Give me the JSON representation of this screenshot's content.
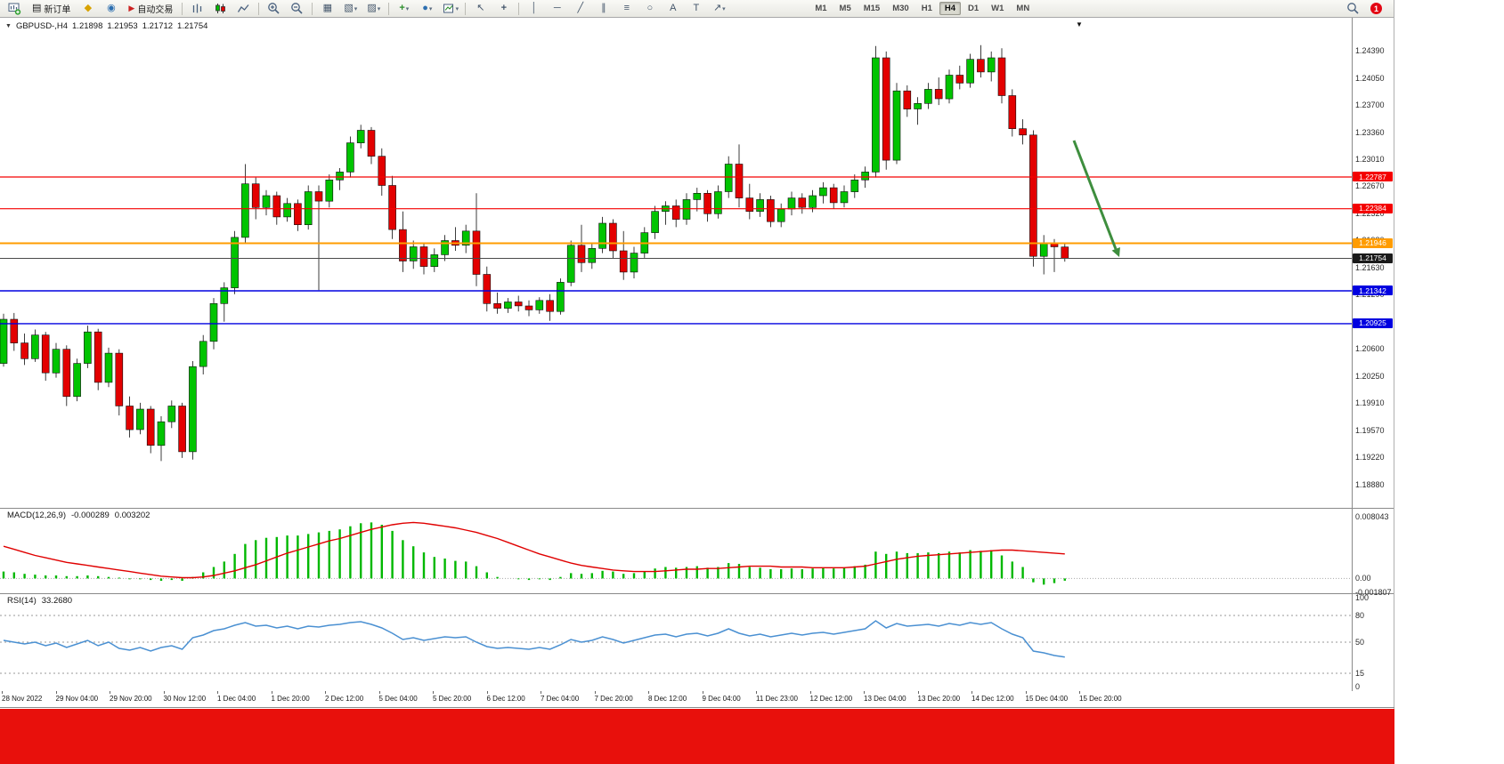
{
  "toolbar": {
    "new_order_label": "新订单",
    "autotrading_label": "自动交易",
    "timeframes": [
      "M1",
      "M5",
      "M15",
      "M30",
      "H1",
      "H4",
      "D1",
      "W1",
      "MN"
    ],
    "active_timeframe": "H4",
    "notification_badge": "1"
  },
  "icons": {
    "new_order_doc": "▤",
    "profile_gold": "◆",
    "market_watch": "◉",
    "autotrading_play": "▶",
    "tile_windows": "▦",
    "cascade_windows": "▧",
    "objects_list": "▨",
    "indicators_add": "+",
    "periods_clock": "●",
    "cursor": "↖",
    "crosshair": "+",
    "vertical_line": "│",
    "horizontal_line": "─",
    "trendline": "╱",
    "channel": "∥",
    "fibonacci": "≡",
    "shapes": "○",
    "text_tool": "A",
    "label_tool": "T",
    "arrows_tool": "↗",
    "chart_shift_marker": "▼",
    "one_click_toggle": "▼"
  },
  "chart_header": {
    "symbol": "GBPUSD-,H4",
    "open": "1.21898",
    "high": "1.21953",
    "low": "1.21712",
    "close": "1.21754"
  },
  "macd_label": {
    "name": "MACD(12,26,9)",
    "value": "-0.000289",
    "signal": "0.003202"
  },
  "rsi_label": {
    "name": "RSI(14)",
    "value": "33.2680"
  },
  "axis": {
    "price_ticks": [
      "1.24390",
      "1.24050",
      "1.23700",
      "1.23360",
      "1.23010",
      "1.22670",
      "1.22320",
      "1.21980",
      "1.21630",
      "1.21290",
      "1.20940",
      "1.20600",
      "1.20250",
      "1.19910",
      "1.19570",
      "1.19220",
      "1.18880"
    ],
    "macd_ticks": [
      "0.008043",
      "0.00",
      "-0.001807"
    ],
    "rsi_ticks": [
      "100",
      "80",
      "50",
      "15",
      "0"
    ]
  },
  "levels": [
    {
      "label": "1.22787",
      "price": 1.22787,
      "color": "#f40000",
      "tag_bg": "#f40000",
      "width": 1.2
    },
    {
      "label": "1.22384",
      "price": 1.22384,
      "color": "#f40000",
      "tag_bg": "#f40000",
      "width": 1.2
    },
    {
      "label": "1.21946",
      "price": 1.21946,
      "color": "#ff9c00",
      "tag_bg": "#ff9c00",
      "width": 2
    },
    {
      "label": "1.21754",
      "price": 1.21754,
      "color": "#4a4a4a",
      "tag_bg": "#1b1b1b",
      "width": 1
    },
    {
      "label": "1.21342",
      "price": 1.21342,
      "color": "#0000e0",
      "tag_bg": "#0000e0",
      "width": 1.4
    },
    {
      "label": "1.20925",
      "price": 1.20925,
      "color": "#0000e0",
      "tag_bg": "#0000e0",
      "width": 1.4
    }
  ],
  "time_axis": [
    "28 Nov 2022",
    "29 Nov 04:00",
    "29 Nov 20:00",
    "30 Nov 12:00",
    "1 Dec 04:00",
    "1 Dec 20:00",
    "2 Dec 12:00",
    "5 Dec 04:00",
    "5 Dec 20:00",
    "6 Dec 12:00",
    "7 Dec 04:00",
    "7 Dec 20:00",
    "8 Dec 12:00",
    "9 Dec 04:00",
    "11 Dec 23:00",
    "12 Dec 12:00",
    "13 Dec 04:00",
    "13 Dec 20:00",
    "14 Dec 12:00",
    "15 Dec 04:00",
    "15 Dec 20:00"
  ],
  "chart_data": {
    "type": "candlestick",
    "symbol": "GBPUSD",
    "timeframe": "H4",
    "axis_top": 1.2439,
    "ylim": [
      1.1888,
      1.24446
    ],
    "colors": {
      "up": "#00c400",
      "down": "#e30000",
      "outline": "#0d0d0d",
      "macd_hist": "#00b800",
      "macd_signal": "#e00000",
      "rsi_line": "#4a90d2"
    },
    "macd_scale": {
      "max": 0.008043,
      "min": -0.001807
    },
    "rsi_levels": [
      80,
      50,
      15
    ],
    "arrow": {
      "direction": "down-right",
      "color": "#3e8e3e"
    },
    "candles": [
      [
        1.2042,
        1.2105,
        1.2038,
        1.2098
      ],
      [
        1.2098,
        1.2106,
        1.2058,
        1.2068
      ],
      [
        1.2068,
        1.208,
        1.204,
        1.2048
      ],
      [
        1.2048,
        1.2085,
        1.2044,
        1.2078
      ],
      [
        1.2078,
        1.2082,
        1.202,
        1.203
      ],
      [
        1.203,
        1.2068,
        1.2024,
        1.206
      ],
      [
        1.206,
        1.2065,
        1.1988,
        1.2
      ],
      [
        1.2,
        1.2048,
        1.1994,
        1.2042
      ],
      [
        1.2042,
        1.209,
        1.2036,
        1.2082
      ],
      [
        1.2082,
        1.2086,
        1.2008,
        1.2018
      ],
      [
        1.2018,
        1.2062,
        1.2012,
        1.2055
      ],
      [
        1.2055,
        1.206,
        1.1976,
        1.1988
      ],
      [
        1.1988,
        1.2,
        1.1948,
        1.1958
      ],
      [
        1.1958,
        1.1992,
        1.1952,
        1.1984
      ],
      [
        1.1984,
        1.1988,
        1.1928,
        1.1938
      ],
      [
        1.1938,
        1.1975,
        1.1918,
        1.1968
      ],
      [
        1.1968,
        1.1995,
        1.196,
        1.1988
      ],
      [
        1.1988,
        1.1992,
        1.1922,
        1.193
      ],
      [
        1.193,
        1.2045,
        1.192,
        1.2038
      ],
      [
        1.2038,
        1.2078,
        1.2028,
        1.207
      ],
      [
        1.207,
        1.2125,
        1.206,
        1.2118
      ],
      [
        1.2118,
        1.2145,
        1.2095,
        1.2138
      ],
      [
        1.2138,
        1.221,
        1.213,
        1.2202
      ],
      [
        1.2202,
        1.2295,
        1.2195,
        1.227
      ],
      [
        1.227,
        1.2278,
        1.2225,
        1.224
      ],
      [
        1.224,
        1.2262,
        1.223,
        1.2255
      ],
      [
        1.2255,
        1.226,
        1.2218,
        1.2228
      ],
      [
        1.2228,
        1.2252,
        1.2222,
        1.2245
      ],
      [
        1.2245,
        1.225,
        1.221,
        1.2218
      ],
      [
        1.2218,
        1.2268,
        1.2212,
        1.226
      ],
      [
        1.226,
        1.2268,
        1.2135,
        1.2248
      ],
      [
        1.2248,
        1.2282,
        1.224,
        1.2275
      ],
      [
        1.2275,
        1.229,
        1.2262,
        1.2285
      ],
      [
        1.2285,
        1.233,
        1.2278,
        1.2322
      ],
      [
        1.2322,
        1.2345,
        1.2315,
        1.2338
      ],
      [
        1.2338,
        1.2342,
        1.2295,
        1.2305
      ],
      [
        1.2305,
        1.2315,
        1.2255,
        1.2268
      ],
      [
        1.2268,
        1.228,
        1.22,
        1.2212
      ],
      [
        1.2212,
        1.2235,
        1.2158,
        1.2172
      ],
      [
        1.2172,
        1.2198,
        1.2162,
        1.219
      ],
      [
        1.219,
        1.2195,
        1.2155,
        1.2165
      ],
      [
        1.2165,
        1.2188,
        1.2158,
        1.218
      ],
      [
        1.218,
        1.2205,
        1.2172,
        1.2198
      ],
      [
        1.2198,
        1.2215,
        1.2185,
        1.2192
      ],
      [
        1.2192,
        1.2218,
        1.2182,
        1.221
      ],
      [
        1.221,
        1.2258,
        1.214,
        1.2155
      ],
      [
        1.2155,
        1.2165,
        1.2108,
        1.2118
      ],
      [
        1.2118,
        1.2132,
        1.2105,
        1.2112
      ],
      [
        1.2112,
        1.2125,
        1.2106,
        1.212
      ],
      [
        1.212,
        1.2128,
        1.2108,
        1.2115
      ],
      [
        1.2115,
        1.2122,
        1.2102,
        1.211
      ],
      [
        1.211,
        1.2126,
        1.2105,
        1.2122
      ],
      [
        1.2122,
        1.213,
        1.2096,
        1.2108
      ],
      [
        1.2108,
        1.215,
        1.2104,
        1.2145
      ],
      [
        1.2145,
        1.2198,
        1.214,
        1.2192
      ],
      [
        1.2192,
        1.2218,
        1.2158,
        1.217
      ],
      [
        1.217,
        1.2195,
        1.2162,
        1.2188
      ],
      [
        1.2188,
        1.2228,
        1.2182,
        1.222
      ],
      [
        1.222,
        1.2225,
        1.2175,
        1.2185
      ],
      [
        1.2185,
        1.221,
        1.2148,
        1.2158
      ],
      [
        1.2158,
        1.219,
        1.215,
        1.2182
      ],
      [
        1.2182,
        1.2215,
        1.2176,
        1.2208
      ],
      [
        1.2208,
        1.2242,
        1.22,
        1.2235
      ],
      [
        1.2235,
        1.2248,
        1.2218,
        1.2242
      ],
      [
        1.2242,
        1.225,
        1.2215,
        1.2225
      ],
      [
        1.2225,
        1.2258,
        1.2218,
        1.225
      ],
      [
        1.225,
        1.2265,
        1.2235,
        1.2258
      ],
      [
        1.2258,
        1.2262,
        1.2222,
        1.2232
      ],
      [
        1.2232,
        1.2268,
        1.2226,
        1.226
      ],
      [
        1.226,
        1.2305,
        1.2252,
        1.2295
      ],
      [
        1.2295,
        1.232,
        1.224,
        1.2252
      ],
      [
        1.2252,
        1.227,
        1.2225,
        1.2235
      ],
      [
        1.2235,
        1.2258,
        1.2228,
        1.225
      ],
      [
        1.225,
        1.2255,
        1.2215,
        1.2222
      ],
      [
        1.2222,
        1.2245,
        1.2215,
        1.2238
      ],
      [
        1.2238,
        1.226,
        1.223,
        1.2252
      ],
      [
        1.2252,
        1.2258,
        1.2232,
        1.224
      ],
      [
        1.224,
        1.2262,
        1.2234,
        1.2255
      ],
      [
        1.2255,
        1.2272,
        1.2245,
        1.2265
      ],
      [
        1.2265,
        1.227,
        1.2238,
        1.2246
      ],
      [
        1.2246,
        1.2268,
        1.224,
        1.226
      ],
      [
        1.226,
        1.2282,
        1.2252,
        1.2275
      ],
      [
        1.2275,
        1.2292,
        1.2265,
        1.2285
      ],
      [
        1.2285,
        1.2445,
        1.2278,
        1.243
      ],
      [
        1.243,
        1.2438,
        1.2288,
        1.23
      ],
      [
        1.23,
        1.2398,
        1.2295,
        1.2388
      ],
      [
        1.2388,
        1.2395,
        1.2355,
        1.2365
      ],
      [
        1.2365,
        1.238,
        1.2345,
        1.2372
      ],
      [
        1.2372,
        1.2398,
        1.2365,
        1.239
      ],
      [
        1.239,
        1.2405,
        1.237,
        1.2378
      ],
      [
        1.2378,
        1.2415,
        1.2372,
        1.2408
      ],
      [
        1.2408,
        1.242,
        1.239,
        1.2398
      ],
      [
        1.2398,
        1.2435,
        1.2392,
        1.2428
      ],
      [
        1.2428,
        1.2446,
        1.2405,
        1.2412
      ],
      [
        1.2412,
        1.2438,
        1.24,
        1.243
      ],
      [
        1.243,
        1.2442,
        1.2372,
        1.2382
      ],
      [
        1.2382,
        1.239,
        1.233,
        1.234
      ],
      [
        1.234,
        1.2352,
        1.232,
        1.2332
      ],
      [
        1.2332,
        1.2338,
        1.2165,
        1.2178
      ],
      [
        1.2178,
        1.2205,
        1.2155,
        1.2195
      ],
      [
        1.2195,
        1.22,
        1.2158,
        1.219
      ],
      [
        1.21898,
        1.21953,
        1.21712,
        1.21754
      ]
    ],
    "macd_hist": [
      0.0009,
      0.0008,
      0.0006,
      0.0005,
      0.0004,
      0.0004,
      0.0003,
      0.0003,
      0.0004,
      0.0003,
      0.0002,
      0.0001,
      -0.0001,
      -0.0001,
      -0.0002,
      -0.0003,
      -0.0002,
      -0.0003,
      0.0002,
      0.0008,
      0.0015,
      0.0022,
      0.0032,
      0.0045,
      0.005,
      0.0053,
      0.0054,
      0.0056,
      0.0056,
      0.0058,
      0.006,
      0.0062,
      0.0064,
      0.0068,
      0.0072,
      0.0073,
      0.007,
      0.0062,
      0.005,
      0.0042,
      0.0034,
      0.0028,
      0.0026,
      0.0023,
      0.0022,
      0.0016,
      0.0008,
      0.0002,
      0,
      -0.0001,
      -0.0002,
      -0.0001,
      -0.0002,
      0.0002,
      0.0007,
      0.0006,
      0.0007,
      0.001,
      0.0009,
      0.0006,
      0.0007,
      0.0009,
      0.0013,
      0.0015,
      0.0014,
      0.0015,
      0.0016,
      0.0014,
      0.0015,
      0.002,
      0.0019,
      0.0015,
      0.0014,
      0.0012,
      0.0012,
      0.0013,
      0.0012,
      0.0013,
      0.0014,
      0.0013,
      0.0014,
      0.0016,
      0.0018,
      0.0035,
      0.0032,
      0.0035,
      0.0033,
      0.0033,
      0.0034,
      0.0033,
      0.0035,
      0.0034,
      0.0037,
      0.0036,
      0.0037,
      0.003,
      0.0022,
      0.0015,
      -0.0005,
      -0.0008,
      -0.0006,
      -0.000289
    ],
    "macd_signal": [
      0.0042,
      0.0038,
      0.0034,
      0.003,
      0.0027,
      0.0024,
      0.0021,
      0.0019,
      0.0017,
      0.0015,
      0.0013,
      0.0011,
      0.0009,
      0.0007,
      0.0005,
      0.0003,
      0.0002,
      0.0001,
      0.0001,
      0.0002,
      0.0004,
      0.0007,
      0.001,
      0.0014,
      0.0018,
      0.0023,
      0.0028,
      0.0033,
      0.0037,
      0.0041,
      0.0045,
      0.0049,
      0.0052,
      0.0056,
      0.006,
      0.0064,
      0.0067,
      0.007,
      0.0072,
      0.0073,
      0.0072,
      0.007,
      0.0068,
      0.0066,
      0.0063,
      0.006,
      0.0056,
      0.0052,
      0.0047,
      0.0042,
      0.0037,
      0.0032,
      0.0028,
      0.0024,
      0.002,
      0.0017,
      0.0015,
      0.0013,
      0.0011,
      0.001,
      0.0009,
      0.0009,
      0.0009,
      0.001,
      0.0011,
      0.0012,
      0.0012,
      0.0013,
      0.0013,
      0.0014,
      0.0015,
      0.0016,
      0.0016,
      0.0016,
      0.0015,
      0.0015,
      0.0015,
      0.0014,
      0.0014,
      0.0014,
      0.0014,
      0.0015,
      0.0016,
      0.0019,
      0.0022,
      0.0025,
      0.0027,
      0.0029,
      0.003,
      0.0031,
      0.0032,
      0.0033,
      0.0034,
      0.0035,
      0.0036,
      0.0037,
      0.0037,
      0.0036,
      0.0035,
      0.0034,
      0.0033,
      0.003202
    ],
    "rsi": [
      52,
      50,
      48,
      50,
      46,
      49,
      44,
      48,
      52,
      46,
      50,
      43,
      41,
      44,
      40,
      44,
      46,
      42,
      55,
      58,
      63,
      65,
      69,
      72,
      68,
      69,
      66,
      68,
      65,
      68,
      67,
      69,
      70,
      72,
      73,
      70,
      66,
      60,
      53,
      55,
      52,
      54,
      56,
      55,
      56,
      50,
      45,
      43,
      44,
      43,
      42,
      44,
      42,
      47,
      53,
      50,
      52,
      56,
      53,
      49,
      52,
      55,
      58,
      59,
      56,
      59,
      60,
      57,
      60,
      65,
      60,
      57,
      59,
      56,
      58,
      60,
      58,
      60,
      61,
      59,
      61,
      63,
      65,
      74,
      66,
      71,
      68,
      69,
      70,
      68,
      71,
      69,
      72,
      70,
      72,
      65,
      59,
      55,
      40,
      38,
      35,
      33.268
    ]
  }
}
